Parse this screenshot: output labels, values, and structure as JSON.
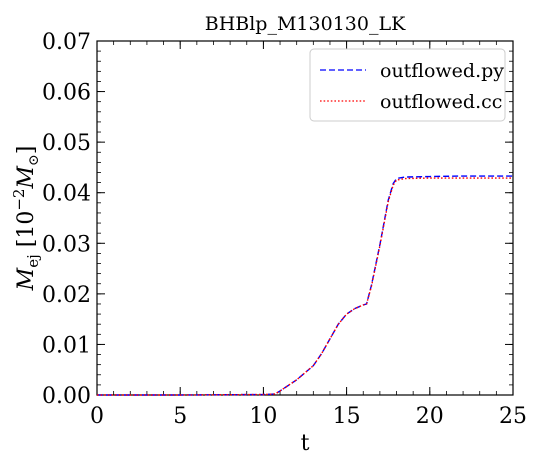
{
  "chart_data": {
    "type": "line",
    "title": "BHBlp_M130130_LK",
    "xlabel": "t",
    "ylabel": "M_ej [10^-2 M_sun]",
    "ylabel_parts": {
      "main": "M",
      "sub": "ej",
      "open": " [10",
      "sup": "−2",
      "mid": "M",
      "sub2": "⊙",
      "close": "]"
    },
    "xlim": [
      0,
      25
    ],
    "ylim": [
      0,
      0.07
    ],
    "xticks": [
      0,
      5,
      10,
      15,
      20,
      25
    ],
    "xtick_labels": [
      "0",
      "5",
      "10",
      "15",
      "20",
      "25"
    ],
    "yticks": [
      0,
      0.01,
      0.02,
      0.03,
      0.04,
      0.05,
      0.06,
      0.07
    ],
    "ytick_labels": [
      "0.00",
      "0.01",
      "0.02",
      "0.03",
      "0.04",
      "0.05",
      "0.06",
      "0.07"
    ],
    "grid": false,
    "legend_position": "top-right",
    "series": [
      {
        "name": "outflowed.py",
        "color": "#0000ff",
        "dash": "dashed",
        "x": [
          0,
          5,
          10,
          10.7,
          11,
          12,
          13,
          13.5,
          14,
          14.5,
          15,
          15.5,
          16,
          16.2,
          16.5,
          17,
          17.5,
          17.8,
          18,
          18.5,
          20,
          22,
          25
        ],
        "y": [
          0,
          0,
          0.0001,
          0.0002,
          0.0008,
          0.003,
          0.0058,
          0.0082,
          0.0111,
          0.014,
          0.016,
          0.0171,
          0.0178,
          0.018,
          0.0218,
          0.0297,
          0.0385,
          0.0418,
          0.0428,
          0.0431,
          0.0432,
          0.0433,
          0.0433
        ]
      },
      {
        "name": "outflowed.cc",
        "color": "#ff0000",
        "dash": "dotted",
        "x": [
          0,
          5,
          10,
          10.7,
          11,
          12,
          13,
          13.5,
          14,
          14.5,
          15,
          15.5,
          16,
          16.2,
          16.5,
          17,
          17.5,
          17.8,
          18,
          18.5,
          20,
          22,
          25
        ],
        "y": [
          0,
          0,
          0.0001,
          0.0002,
          0.0008,
          0.003,
          0.0058,
          0.0082,
          0.0111,
          0.014,
          0.016,
          0.0171,
          0.0178,
          0.018,
          0.0216,
          0.0295,
          0.0382,
          0.0415,
          0.0425,
          0.0428,
          0.0429,
          0.0429,
          0.0429
        ]
      }
    ]
  }
}
